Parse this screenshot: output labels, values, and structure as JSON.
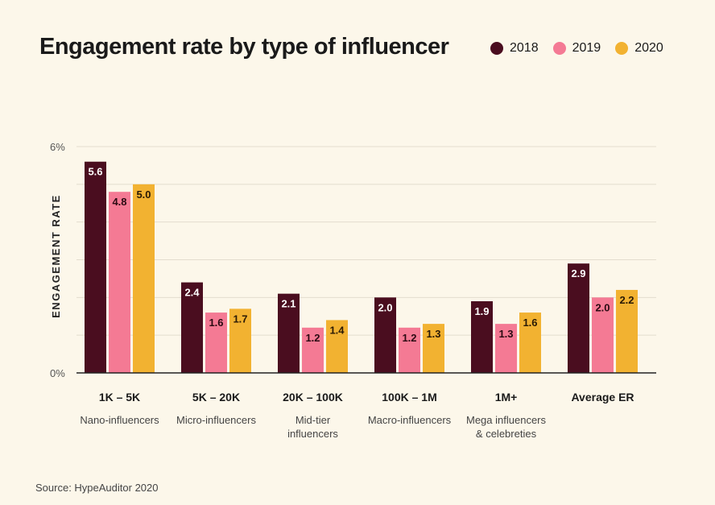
{
  "chart_data": {
    "type": "bar",
    "title": "Engagement rate by type of influencer",
    "ylabel": "ENGAGEMENT RATE",
    "ylim": [
      0,
      6
    ],
    "yticks": [
      {
        "value": 0,
        "label": "0%"
      },
      {
        "value": 6,
        "label": "6%"
      }
    ],
    "grid": true,
    "legend_position": "top-right",
    "categories": [
      "1K – 5K",
      "5K – 20K",
      "20K – 100K",
      "100K – 1M",
      "1M+",
      "Average ER"
    ],
    "category_subtitles": [
      [
        "Nano-influencers"
      ],
      [
        "Micro-influencers"
      ],
      [
        "Mid-tier",
        "influencers"
      ],
      [
        "Macro-influencers"
      ],
      [
        "Mega influencers",
        "& celebreties"
      ],
      []
    ],
    "series": [
      {
        "name": "2018",
        "color": "#4a0d1f",
        "label_color": "#ffffff",
        "values": [
          5.6,
          2.4,
          2.1,
          2.0,
          1.9,
          2.9
        ],
        "labels": [
          "5.6",
          "2.4",
          "2.1",
          "2.0",
          "1.9",
          "2.9"
        ]
      },
      {
        "name": "2019",
        "color": "#f47a94",
        "label_color": "#2a0a12",
        "values": [
          4.8,
          1.6,
          1.2,
          1.2,
          1.3,
          2.0
        ],
        "labels": [
          "4.8",
          "1.6",
          "1.2",
          "1.2",
          "1.3",
          "2.0"
        ]
      },
      {
        "name": "2020",
        "color": "#f2b231",
        "label_color": "#2a1a05",
        "values": [
          5.0,
          1.7,
          1.4,
          1.3,
          1.6,
          2.2
        ],
        "labels": [
          "5.0",
          "1.7",
          "1.4",
          "1.3",
          "1.6",
          "2.2"
        ]
      }
    ],
    "source": "Source: HypeAuditor 2020"
  }
}
